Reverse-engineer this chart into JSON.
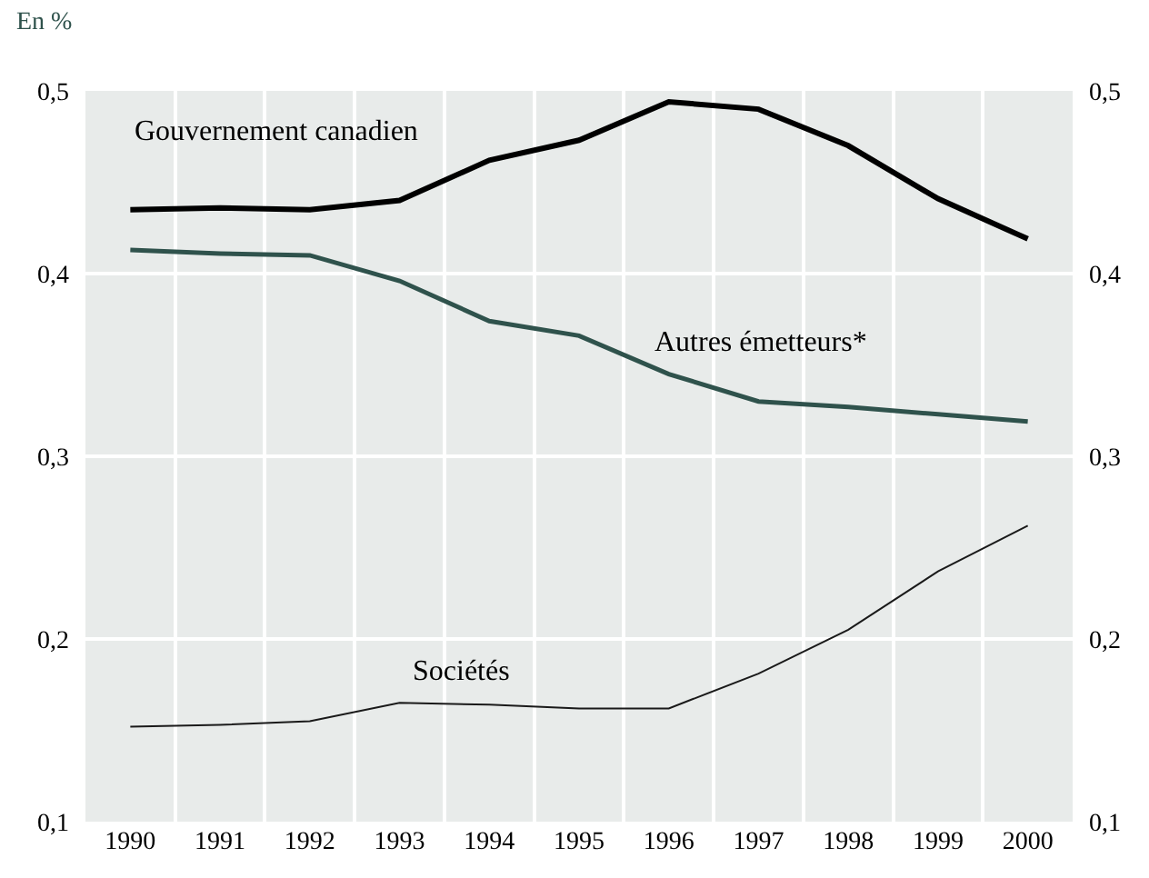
{
  "chart_data": {
    "type": "line",
    "ylabel": "En %",
    "categories": [
      "1990",
      "1991",
      "1992",
      "1993",
      "1994",
      "1995",
      "1996",
      "1997",
      "1998",
      "1999",
      "2000"
    ],
    "series": [
      {
        "name": "Gouvernement canadien",
        "color": "#000000",
        "values": [
          0.435,
          0.436,
          0.435,
          0.44,
          0.462,
          0.473,
          0.494,
          0.49,
          0.47,
          0.441,
          0.419
        ]
      },
      {
        "name": "Autres émetteurs*",
        "color": "#2f524c",
        "values": [
          0.413,
          0.411,
          0.41,
          0.396,
          0.374,
          0.366,
          0.345,
          0.33,
          0.327,
          0.323,
          0.319
        ]
      },
      {
        "name": "Sociétés",
        "color": "#1a1a1a",
        "values": [
          0.152,
          0.153,
          0.155,
          0.165,
          0.164,
          0.162,
          0.162,
          0.181,
          0.205,
          0.237,
          0.262
        ]
      }
    ],
    "ylim": [
      0.1,
      0.5
    ],
    "yticks": [
      {
        "value": 0.1,
        "label": "0,1"
      },
      {
        "value": 0.2,
        "label": "0,2"
      },
      {
        "value": 0.3,
        "label": "0,3"
      },
      {
        "value": 0.4,
        "label": "0,4"
      },
      {
        "value": 0.5,
        "label": "0,5"
      }
    ],
    "y2lim": [
      0.1,
      0.5
    ],
    "y2ticks": [
      {
        "value": 0.1,
        "label": "0,1"
      },
      {
        "value": 0.2,
        "label": "0,2"
      },
      {
        "value": 0.3,
        "label": "0,3"
      },
      {
        "value": 0.4,
        "label": "0,4"
      },
      {
        "value": 0.5,
        "label": "0,5"
      }
    ],
    "grid": true,
    "legend": false,
    "marker": "none",
    "line_style": "solid"
  }
}
